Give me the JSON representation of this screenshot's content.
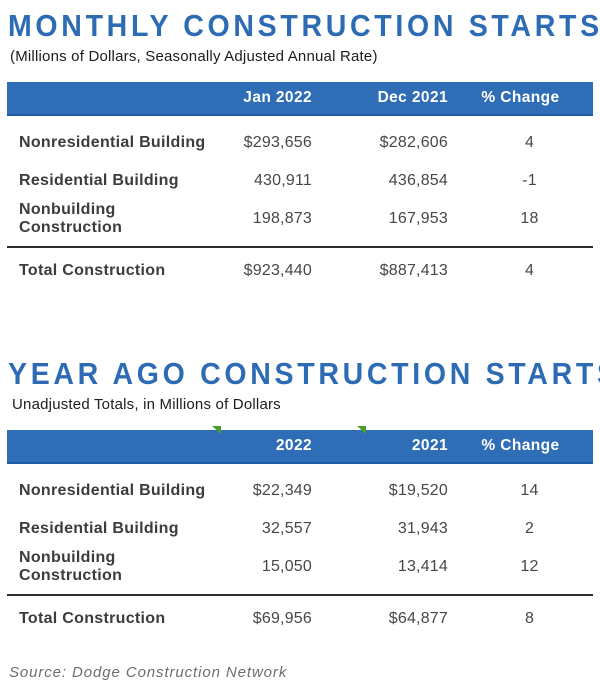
{
  "theme": {
    "accent_blue": "#2d6cb4",
    "band_blue": "#2f6db6",
    "band_edge": "#1c5aa4",
    "flag_green": "#4f9d2f",
    "rule_dark": "#2d2d2d"
  },
  "source": "Source: Dodge Construction Network",
  "tables": [
    {
      "title": "MONTHLY CONSTRUCTION STARTS",
      "subtitle": "(Millions of Dollars, Seasonally Adjusted Annual Rate)",
      "columns": [
        "",
        "Jan 2022",
        "Dec 2021",
        "% Change"
      ],
      "rows": [
        {
          "label": "Nonresidential Building",
          "c1": "$293,656",
          "c2": "$282,606",
          "pct": "4"
        },
        {
          "label": "Residential Building",
          "c1": "430,911",
          "c2": "436,854",
          "pct": "-1"
        },
        {
          "label": "Nonbuilding Construction",
          "c1": "198,873",
          "c2": "167,953",
          "pct": "18"
        }
      ],
      "total": {
        "label": "Total Construction",
        "c1": "$923,440",
        "c2": "$887,413",
        "pct": "4"
      }
    },
    {
      "title": "YEAR AGO CONSTRUCTION STARTS",
      "subtitle": "Unadjusted Totals, in Millions of Dollars",
      "columns": [
        "",
        "2022",
        "2021",
        "% Change"
      ],
      "rows": [
        {
          "label": "Nonresidential Building",
          "c1": "$22,349",
          "c2": "$19,520",
          "pct": "14"
        },
        {
          "label": "Residential Building",
          "c1": "32,557",
          "c2": "31,943",
          "pct": "2"
        },
        {
          "label": "Nonbuilding Construction",
          "c1": "15,050",
          "c2": "13,414",
          "pct": "12"
        }
      ],
      "total": {
        "label": "Total Construction",
        "c1": "$69,956",
        "c2": "$64,877",
        "pct": "8"
      }
    }
  ]
}
